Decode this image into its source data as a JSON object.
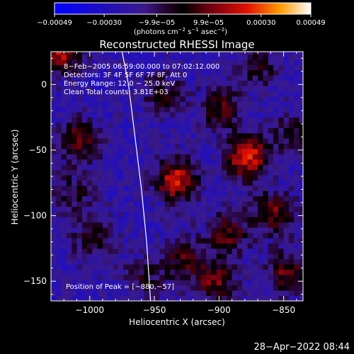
{
  "chart_data": {
    "type": "heatmap",
    "title": "Reconstructed RHESSI Image",
    "xlabel": "Heliocentric X (arcsec)",
    "ylabel": "Heliocentric Y (arcsec)",
    "xlim": [
      -1030,
      -835
    ],
    "ylim": [
      -165,
      25
    ],
    "x_ticks": [
      -1000,
      -950,
      -900,
      -850
    ],
    "x_tick_labels": [
      "−1000",
      "−950",
      "−900",
      "−850"
    ],
    "y_ticks": [
      0,
      -50,
      -100,
      -150
    ],
    "y_tick_labels": [
      "0",
      "−50",
      "−100",
      "−150"
    ],
    "colorbar": {
      "range": [
        -0.00049,
        0.00049
      ],
      "tick_values": [
        -0.00049,
        -0.0003,
        -9.9e-05,
        9.9e-05,
        0.0003,
        0.00049
      ],
      "tick_labels": [
        "−0.00049",
        "−0.00030",
        "−9.9e−05",
        "9.9e−05",
        "0.00030",
        "0.00049"
      ],
      "unit_label": "(photons cm",
      "unit_exp1": "−2",
      "unit_mid": " s",
      "unit_exp2": "−1",
      "unit_mid2": " asec",
      "unit_exp3": "−2",
      "unit_end": ")"
    },
    "annotations": {
      "time_range": "8−Feb−2005 06:59:00.000 to 07:02:12.000",
      "detectors": "Detectors: 3F 4F 5F 6F 7F 8F, Att 0",
      "energy_range": "Energy Range: 12.0 − 25.0 keV",
      "method": "Clean     Total counts: 3.81E+03",
      "peak": "Position of Peak = [−880,−57]"
    },
    "limb_curve": [
      [
        -975,
        25
      ],
      [
        -970,
        0
      ],
      [
        -965,
        -40
      ],
      [
        -960,
        -80
      ],
      [
        -956,
        -120
      ],
      [
        -953,
        -165
      ]
    ],
    "hotspots": [
      {
        "x": -1025,
        "y": 22,
        "amp": 0.0004
      },
      {
        "x": -880,
        "y": -57,
        "amp": 0.00049
      },
      {
        "x": -935,
        "y": -75,
        "amp": 0.00045
      },
      {
        "x": -1010,
        "y": -45,
        "amp": 0.0003
      },
      {
        "x": -900,
        "y": -20,
        "amp": 0.00028
      },
      {
        "x": -895,
        "y": -115,
        "amp": 0.0003
      },
      {
        "x": -860,
        "y": -100,
        "amp": 0.00032
      },
      {
        "x": -1000,
        "y": -120,
        "amp": 0.00022
      },
      {
        "x": -905,
        "y": -152,
        "amp": 0.0003
      },
      {
        "x": -945,
        "y": -10,
        "amp": 0.00022
      },
      {
        "x": -930,
        "y": -135,
        "amp": 0.00025
      },
      {
        "x": -850,
        "y": -145,
        "amp": 0.00028
      },
      {
        "x": -1015,
        "y": -85,
        "amp": 0.00018
      },
      {
        "x": -960,
        "y": -150,
        "amp": 0.00018
      },
      {
        "x": -870,
        "y": 10,
        "amp": 0.00018
      },
      {
        "x": -845,
        "y": -40,
        "amp": 0.0002
      }
    ]
  },
  "footer": {
    "timestamp": "28−Apr−2022 08:44"
  }
}
